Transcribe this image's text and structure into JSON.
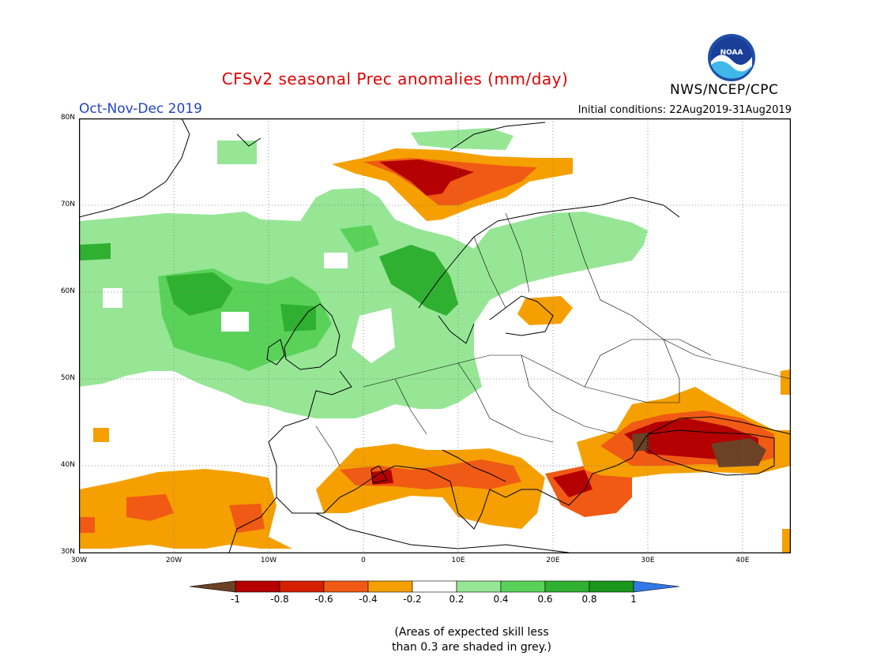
{
  "header": {
    "title": "CFSv2 seasonal Prec anomalies (mm/day)",
    "period": "Oct-Nov-Dec 2019",
    "initial_conditions": "Initial conditions: 22Aug2019-31Aug2019",
    "agency": "NWS/NCEP/CPC",
    "logo_text": "NOAA"
  },
  "map": {
    "lon_range": [
      -30,
      45
    ],
    "lat_range": [
      30,
      80
    ],
    "lat_labels": [
      "80N",
      "70N",
      "60N",
      "50N",
      "40N",
      "30N"
    ],
    "lon_labels": [
      "30W",
      "20W",
      "10W",
      "0",
      "10E",
      "20E",
      "30E",
      "40E"
    ],
    "anomaly_regions": [
      {
        "name": "north-atlantic-wet",
        "level": 0.3
      },
      {
        "name": "norway-wet-core",
        "level": 0.7
      },
      {
        "name": "british-isles-wet",
        "level": 0.5
      },
      {
        "name": "central-europe-wet",
        "level": 0.3
      },
      {
        "name": "barents-sea-dry",
        "level": -0.5
      },
      {
        "name": "barents-sea-dry-core",
        "level": -0.9
      },
      {
        "name": "baltic-dry",
        "level": -0.3
      },
      {
        "name": "iberia-atlantic-dry",
        "level": -0.3
      },
      {
        "name": "western-med-dry",
        "level": -0.6
      },
      {
        "name": "central-med-dry",
        "level": -0.7
      },
      {
        "name": "aegean-dry",
        "level": -0.8
      },
      {
        "name": "black-sea-dry",
        "level": -0.6
      },
      {
        "name": "black-sea-dry-core",
        "level": -0.9
      },
      {
        "name": "caucasus-strong-dry",
        "level": -1.0
      }
    ]
  },
  "colorbar": {
    "labels": [
      "-1",
      "-0.8",
      "-0.6",
      "-0.4",
      "-0.2",
      "0.2",
      "0.4",
      "0.6",
      "0.8",
      "1"
    ],
    "colors": [
      "#6b4226",
      "#b40000",
      "#d42000",
      "#f05a14",
      "#f5a000",
      "#ffffff",
      "#96e696",
      "#5ad25a",
      "#30b030",
      "#1a961a",
      "#3278e6"
    ]
  },
  "note": {
    "line1": "(Areas of expected skill less",
    "line2": "than 0.3 are shaded in grey.)"
  }
}
